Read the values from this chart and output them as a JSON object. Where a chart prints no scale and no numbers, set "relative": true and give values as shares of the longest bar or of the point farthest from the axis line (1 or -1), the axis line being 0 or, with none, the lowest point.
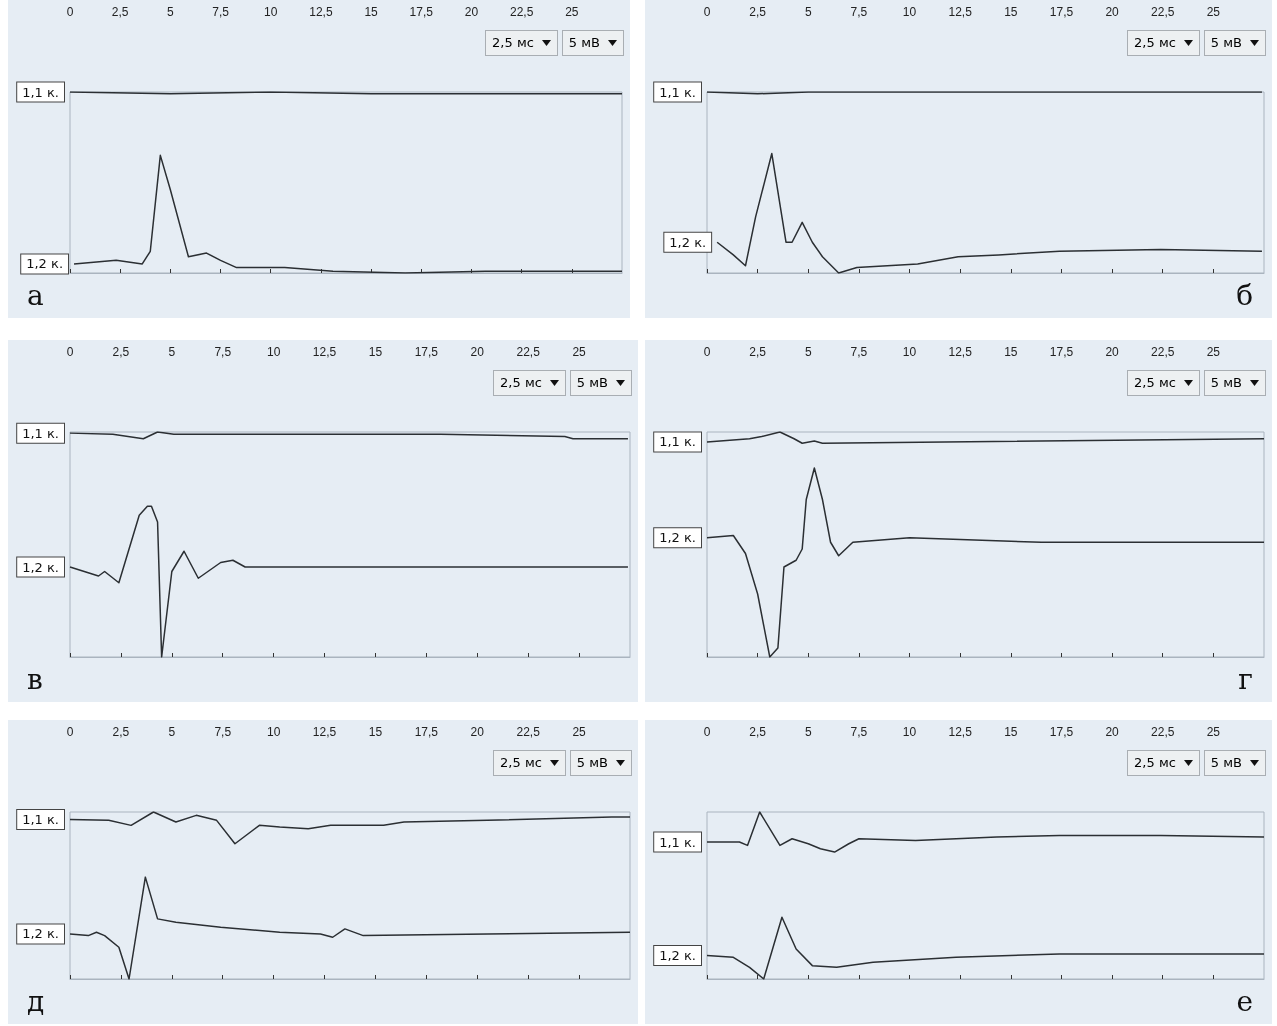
{
  "chart_data": [
    {
      "type": "line",
      "relative": true,
      "title": "а",
      "xlim": [
        0,
        27.5
      ],
      "xticks": [
        0,
        {
          "value": 2.5,
          "label": "2,5"
        },
        5,
        {
          "value": 7.5,
          "label": "7,5"
        },
        10,
        {
          "value": 12.5,
          "label": "12,5"
        },
        15,
        {
          "value": 17.5,
          "label": "17,5"
        },
        20,
        {
          "value": 22.5,
          "label": "22,5"
        },
        25
      ],
      "annotations": [
        "2,5 мс",
        "5 мВ"
      ],
      "series": [
        {
          "name": "1,1 к.",
          "color": "#2b2f33",
          "x": [
            0,
            5,
            10,
            15,
            20,
            27.5
          ],
          "values": [
            1,
            0.99,
            1,
            0.99,
            0.99,
            0.99
          ]
        },
        {
          "name": "1,2 к.",
          "color": "#2b2f33",
          "x": [
            0.2,
            2.3,
            3.6,
            4,
            4.5,
            5,
            5.9,
            6.8,
            7.5,
            8.3,
            10.7,
            13.1,
            16.7,
            20.7,
            27.5
          ],
          "values": [
            0.05,
            0.07,
            0.05,
            0.12,
            0.65,
            0.46,
            0.09,
            0.11,
            0.07,
            0.03,
            0.03,
            0.01,
            0,
            0.01,
            0.01
          ]
        }
      ]
    },
    {
      "type": "line",
      "relative": true,
      "title": "б",
      "xlim": [
        0,
        27.5
      ],
      "xticks": [
        0,
        {
          "value": 2.5,
          "label": "2,5"
        },
        5,
        {
          "value": 7.5,
          "label": "7,5"
        },
        10,
        {
          "value": 12.5,
          "label": "12,5"
        },
        15,
        {
          "value": 17.5,
          "label": "17,5"
        },
        20,
        {
          "value": 22.5,
          "label": "22,5"
        },
        25
      ],
      "annotations": [
        "2,5 мс",
        "5 мВ"
      ],
      "series": [
        {
          "name": "1,1 к.",
          "color": "#2b2f33",
          "x": [
            0,
            2.5,
            5,
            10,
            20,
            27.4
          ],
          "values": [
            1,
            0.99,
            1,
            1,
            1,
            1
          ]
        },
        {
          "name": "1,2 к.",
          "color": "#2b2f33",
          "x": [
            0.5,
            1.3,
            1.9,
            2.4,
            3.2,
            3.9,
            4.2,
            4.7,
            5.2,
            5.7,
            6.5,
            7.4,
            10.4,
            12.4,
            14.4,
            17.4,
            22.4,
            27.4
          ],
          "values": [
            0.17,
            0.1,
            0.04,
            0.31,
            0.66,
            0.17,
            0.17,
            0.28,
            0.17,
            0.09,
            0,
            0.03,
            0.05,
            0.09,
            0.1,
            0.12,
            0.13,
            0.12
          ]
        }
      ]
    },
    {
      "type": "line",
      "relative": true,
      "title": "в",
      "xlim": [
        0,
        27.5
      ],
      "xticks": [
        0,
        {
          "value": 2.5,
          "label": "2,5"
        },
        5,
        {
          "value": 7.5,
          "label": "7,5"
        },
        10,
        {
          "value": 12.5,
          "label": "12,5"
        },
        15,
        {
          "value": 17.5,
          "label": "17,5"
        },
        20,
        {
          "value": 22.5,
          "label": "22,5"
        },
        25
      ],
      "annotations": [
        "2,5 мс",
        "5 мВ"
      ],
      "series": [
        {
          "name": "1,1 к.",
          "color": "#2b2f33",
          "x": [
            0,
            2.1,
            3.6,
            4.3,
            5.1,
            10.2,
            18.2,
            24.3,
            24.7,
            27.4
          ],
          "values": [
            0.995,
            0.99,
            0.97,
            1,
            0.99,
            0.99,
            0.99,
            0.98,
            0.97,
            0.97
          ]
        },
        {
          "name": "1,2 к.",
          "color": "#2b2f33",
          "x": [
            0,
            1.4,
            1.7,
            2.4,
            3.4,
            3.8,
            4,
            4.3,
            4.5,
            5,
            5.6,
            6.3,
            7.4,
            8,
            8.6,
            27.4
          ],
          "values": [
            0.4,
            0.36,
            0.38,
            0.33,
            0.63,
            0.67,
            0.67,
            0.6,
            0,
            0.38,
            0.47,
            0.35,
            0.42,
            0.43,
            0.4,
            0.4
          ]
        }
      ]
    },
    {
      "type": "line",
      "relative": true,
      "title": "г",
      "xlim": [
        0,
        27.5
      ],
      "xticks": [
        0,
        {
          "value": 2.5,
          "label": "2,5"
        },
        5,
        {
          "value": 7.5,
          "label": "7,5"
        },
        10,
        {
          "value": 12.5,
          "label": "12,5"
        },
        15,
        {
          "value": 17.5,
          "label": "17,5"
        },
        20,
        {
          "value": 22.5,
          "label": "22,5"
        },
        25
      ],
      "annotations": [
        "2,5 мс",
        "5 мВ"
      ],
      "series": [
        {
          "name": "1,1 к.",
          "color": "#2b2f33",
          "x": [
            0,
            2.1,
            2.7,
            3.6,
            4.3,
            4.7,
            5.3,
            5.7,
            27.5
          ],
          "values": [
            0.956,
            0.97,
            0.98,
            1,
            0.97,
            0.95,
            0.96,
            0.95,
            0.97
          ]
        },
        {
          "name": "1,2 к.",
          "color": "#2b2f33",
          "x": [
            0,
            1.3,
            1.9,
            2.5,
            3.1,
            3.5,
            3.8,
            4,
            4.4,
            4.7,
            4.9,
            5.3,
            5.7,
            6.1,
            6.5,
            7.2,
            10,
            16.5,
            27.5
          ],
          "values": [
            0.53,
            0.54,
            0.46,
            0.28,
            0,
            0.04,
            0.4,
            0.41,
            0.43,
            0.48,
            0.7,
            0.84,
            0.7,
            0.51,
            0.45,
            0.51,
            0.53,
            0.51,
            0.51
          ]
        }
      ]
    },
    {
      "type": "line",
      "relative": true,
      "title": "д",
      "xlim": [
        0,
        27.5
      ],
      "xticks": [
        0,
        {
          "value": 2.5,
          "label": "2,5"
        },
        5,
        {
          "value": 7.5,
          "label": "7,5"
        },
        10,
        {
          "value": 12.5,
          "label": "12,5"
        },
        15,
        {
          "value": 17.5,
          "label": "17,5"
        },
        20,
        {
          "value": 22.5,
          "label": "22,5"
        },
        25
      ],
      "annotations": [
        "2,5 мс",
        "5 мВ"
      ],
      "series": [
        {
          "name": "1,1 к.",
          "color": "#2b2f33",
          "x": [
            0,
            1.9,
            3,
            4.1,
            5.2,
            6.2,
            7.2,
            8.1,
            9.3,
            10.3,
            11.7,
            12.8,
            15.4,
            16.4,
            20.5,
            26.6,
            27.5
          ],
          "values": [
            0.955,
            0.95,
            0.92,
            1,
            0.94,
            0.98,
            0.95,
            0.81,
            0.92,
            0.91,
            0.9,
            0.92,
            0.92,
            0.94,
            0.95,
            0.97,
            0.97
          ]
        },
        {
          "name": "1,2 к.",
          "color": "#2b2f33",
          "x": [
            0,
            0.9,
            1.3,
            1.7,
            2.4,
            2.9,
            3.7,
            4.3,
            5.2,
            7.4,
            10.3,
            12.3,
            12.9,
            13.5,
            14.4,
            20.5,
            27.5
          ],
          "values": [
            0.27,
            0.26,
            0.28,
            0.26,
            0.19,
            0,
            0.61,
            0.36,
            0.34,
            0.31,
            0.28,
            0.27,
            0.25,
            0.3,
            0.26,
            0.27,
            0.28
          ]
        }
      ]
    },
    {
      "type": "line",
      "relative": true,
      "title": "е",
      "xlim": [
        0,
        27.5
      ],
      "xticks": [
        0,
        {
          "value": 2.5,
          "label": "2,5"
        },
        5,
        {
          "value": 7.5,
          "label": "7,5"
        },
        10,
        {
          "value": 12.5,
          "label": "12,5"
        },
        15,
        {
          "value": 17.5,
          "label": "17,5"
        },
        20,
        {
          "value": 22.5,
          "label": "22,5"
        },
        25
      ],
      "annotations": [
        "2,5 мс",
        "5 мВ"
      ],
      "series": [
        {
          "name": "1,1 к.",
          "color": "#2b2f33",
          "x": [
            0,
            1.6,
            2,
            2.6,
            3.6,
            4.2,
            5,
            5.6,
            6.3,
            7,
            7.5,
            10.3,
            14.3,
            17.4,
            22.4,
            27.5
          ],
          "values": [
            0.82,
            0.82,
            0.8,
            1,
            0.8,
            0.84,
            0.81,
            0.78,
            0.76,
            0.81,
            0.84,
            0.83,
            0.85,
            0.86,
            0.86,
            0.85
          ]
        },
        {
          "name": "1,2 к.",
          "color": "#2b2f33",
          "x": [
            0,
            1.3,
            2.1,
            2.8,
            3.7,
            4.4,
            5.2,
            6.4,
            8.2,
            12.3,
            17.4,
            22.4,
            27.5
          ],
          "values": [
            0.14,
            0.13,
            0.07,
            0,
            0.37,
            0.18,
            0.08,
            0.07,
            0.1,
            0.13,
            0.15,
            0.15,
            0.15
          ]
        }
      ]
    }
  ]
}
